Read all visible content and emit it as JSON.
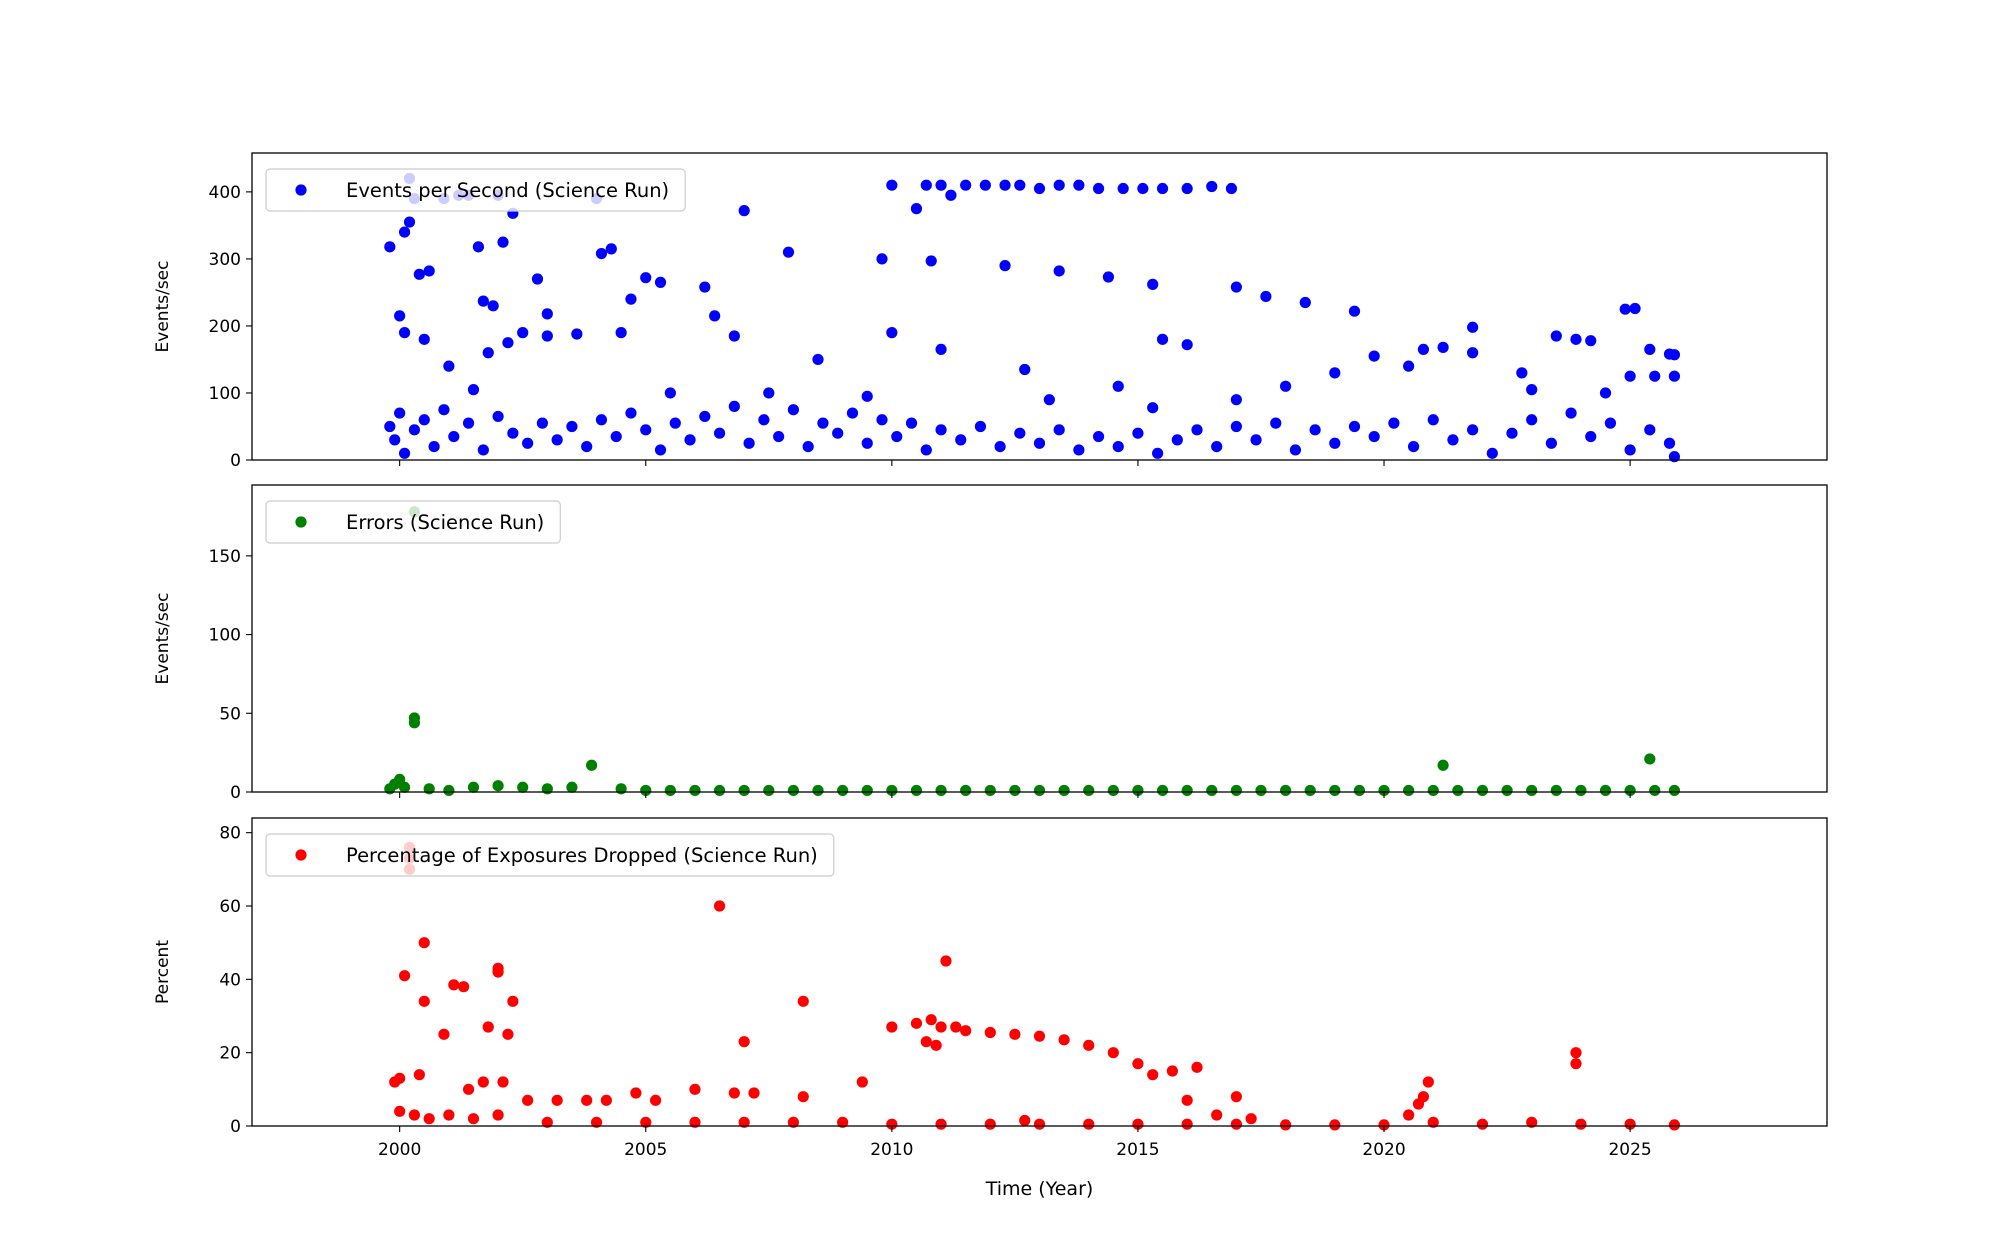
{
  "chart_data": [
    {
      "type": "scatter",
      "ylabel": "Events/sec",
      "xlim": [
        1997,
        2029
      ],
      "ylim": [
        0,
        458
      ],
      "xticks": [
        2000,
        2005,
        2010,
        2015,
        2020,
        2025
      ],
      "yticks": [
        0,
        100,
        200,
        300,
        400
      ],
      "legend": "upper left",
      "series": [
        {
          "name": "Events per Second (Science Run)",
          "color": "#0000ff",
          "x": [
            1999.8,
            1999.9,
            2000.0,
            2000.1,
            2000.3,
            2000.5,
            2000.7,
            2000.9,
            2001.1,
            2001.4,
            2001.7,
            2002.0,
            2002.3,
            2002.6,
            2002.9,
            2003.2,
            2003.5,
            2003.8,
            2004.1,
            2004.4,
            2004.7,
            2005.0,
            2005.3,
            2005.6,
            2005.9,
            2006.2,
            2006.5,
            2006.8,
            2007.1,
            2007.4,
            2007.7,
            2008.0,
            2008.3,
            2008.6,
            2008.9,
            2009.2,
            2009.5,
            2009.8,
            2010.1,
            2010.4,
            2010.7,
            2011.0,
            2011.4,
            2011.8,
            2012.2,
            2012.6,
            2013.0,
            2013.4,
            2013.8,
            2014.2,
            2014.6,
            2015.0,
            2015.4,
            2015.8,
            2016.2,
            2016.6,
            2017.0,
            2017.4,
            2017.8,
            2018.2,
            2018.6,
            2019.0,
            2019.4,
            2019.8,
            2020.2,
            2020.6,
            2021.0,
            2021.4,
            2021.8,
            2022.2,
            2022.6,
            2023.0,
            2023.4,
            2023.8,
            2024.2,
            2024.6,
            2025.0,
            2025.4,
            2025.8,
            2025.9,
            2000.2,
            2000.3,
            2000.9,
            2001.2,
            2001.4,
            2002.0,
            2004.0,
            1999.8,
            2000.1,
            2000.2,
            2000.4,
            2000.6,
            2001.6,
            2001.7,
            2001.9,
            2002.1,
            2002.3,
            2002.8,
            2003.0,
            2004.1,
            2004.3,
            2004.7,
            2005.0,
            2005.3,
            2006.2,
            2006.4,
            2007.0,
            2007.9,
            2009.8,
            2010.0,
            2010.5,
            2010.8,
            2010.7,
            2011.0,
            2011.2,
            2011.5,
            2011.9,
            2012.3,
            2012.6,
            2013.0,
            2013.4,
            2013.8,
            2014.2,
            2014.7,
            2015.1,
            2015.5,
            2016.0,
            2016.5,
            2016.9,
            2012.3,
            2013.4,
            2014.4,
            2015.3,
            2015.5,
            2016.0,
            2017.0,
            2017.6,
            2018.4,
            2019.4,
            2019.8,
            2017.0,
            2018.0,
            2019.0,
            2020.5,
            2020.8,
            2021.2,
            2021.8,
            2021.8,
            2022.8,
            2023.0,
            2023.5,
            2023.9,
            2024.2,
            2024.5,
            2024.9,
            2025.1,
            2025.0,
            2025.4,
            2025.5,
            2025.8,
            2025.9,
            2025.9,
            2001.0,
            2001.8,
            2002.5,
            2003.6,
            2004.5,
            2005.5,
            2006.8,
            2007.5,
            2008.5,
            2009.5,
            2010.0,
            2011.0,
            2012.7,
            2013.2,
            2014.6,
            2015.3,
            2000.0,
            2000.1,
            2000.5,
            2001.5,
            2002.2,
            2003.0
          ],
          "values": [
            50,
            30,
            70,
            10,
            45,
            60,
            20,
            75,
            35,
            55,
            15,
            65,
            40,
            25,
            55,
            30,
            50,
            20,
            60,
            35,
            70,
            45,
            15,
            55,
            30,
            65,
            40,
            80,
            25,
            60,
            35,
            75,
            20,
            55,
            40,
            70,
            25,
            60,
            35,
            55,
            15,
            45,
            30,
            50,
            20,
            40,
            25,
            45,
            15,
            35,
            20,
            40,
            10,
            30,
            45,
            20,
            50,
            30,
            55,
            15,
            45,
            25,
            50,
            35,
            55,
            20,
            60,
            30,
            45,
            10,
            40,
            60,
            25,
            70,
            35,
            55,
            15,
            45,
            25,
            5,
            420,
            390,
            390,
            395,
            395,
            395,
            390,
            318,
            340,
            355,
            277,
            282,
            318,
            237,
            230,
            325,
            368,
            270,
            218,
            308,
            315,
            240,
            272,
            265,
            258,
            215,
            372,
            310,
            300,
            410,
            375,
            297,
            410,
            410,
            395,
            410,
            410,
            410,
            410,
            405,
            410,
            410,
            405,
            405,
            405,
            405,
            405,
            408,
            405,
            290,
            282,
            273,
            262,
            180,
            172,
            258,
            244,
            235,
            222,
            155,
            90,
            110,
            130,
            140,
            165,
            168,
            198,
            160,
            130,
            105,
            185,
            180,
            178,
            100,
            225,
            226,
            125,
            165,
            125,
            158,
            157,
            125,
            140,
            160,
            190,
            188,
            190,
            100,
            185,
            100,
            150,
            95,
            190,
            165,
            135,
            90,
            110,
            78,
            215,
            190,
            180,
            105,
            175,
            185
          ]
        }
      ]
    },
    {
      "type": "scatter",
      "ylabel": "Events/sec",
      "xlim": [
        1997,
        2029
      ],
      "ylim": [
        0,
        195
      ],
      "xticks": [
        2000,
        2005,
        2010,
        2015,
        2020,
        2025
      ],
      "yticks": [
        0,
        50,
        100,
        150
      ],
      "legend": "upper left",
      "series": [
        {
          "name": "Errors (Science Run)",
          "color": "#008000",
          "x": [
            1999.8,
            1999.9,
            2000.0,
            2000.1,
            2000.3,
            2000.3,
            2000.3,
            2000.6,
            2001.0,
            2001.5,
            2002.0,
            2002.5,
            2003.0,
            2003.5,
            2003.9,
            2004.5,
            2005.0,
            2005.5,
            2006.0,
            2006.5,
            2007.0,
            2007.5,
            2008.0,
            2008.5,
            2009.0,
            2009.5,
            2010.0,
            2010.5,
            2011.0,
            2011.5,
            2012.0,
            2012.5,
            2013.0,
            2013.5,
            2014.0,
            2014.5,
            2015.0,
            2015.5,
            2016.0,
            2016.5,
            2017.0,
            2017.5,
            2018.0,
            2018.5,
            2019.0,
            2019.5,
            2020.0,
            2020.5,
            2021.0,
            2021.2,
            2021.5,
            2022.0,
            2022.5,
            2023.0,
            2023.5,
            2024.0,
            2024.5,
            2025.0,
            2025.4,
            2025.5,
            2025.9
          ],
          "values": [
            2,
            5,
            8,
            3,
            178,
            47,
            44,
            2,
            1,
            3,
            4,
            3,
            2,
            3,
            17,
            2,
            1,
            1,
            1,
            1,
            1,
            1,
            1,
            1,
            1,
            1,
            1,
            1,
            1,
            1,
            1,
            1,
            1,
            1,
            1,
            1,
            1,
            1,
            1,
            1,
            1,
            1,
            1,
            1,
            1,
            1,
            1,
            1,
            1,
            17,
            1,
            1,
            1,
            1,
            1,
            1,
            1,
            1,
            21,
            1,
            1
          ]
        }
      ]
    },
    {
      "type": "scatter",
      "ylabel": "Percent",
      "xlabel": "Time (Year)",
      "xlim": [
        1997,
        2029
      ],
      "ylim": [
        0,
        84
      ],
      "xticks": [
        2000,
        2005,
        2010,
        2015,
        2020,
        2025
      ],
      "yticks": [
        0,
        20,
        40,
        60,
        80
      ],
      "legend": "upper left",
      "series": [
        {
          "name": "Percentage of Exposures Dropped (Science Run)",
          "color": "#ff0000",
          "x": [
            2000.2,
            2000.2,
            2000.2,
            2000.1,
            2000.5,
            2000.5,
            2000.9,
            2001.1,
            2001.3,
            2001.8,
            2002.0,
            2002.0,
            2002.2,
            2002.3,
            1999.9,
            2000.0,
            2000.4,
            2001.4,
            2001.7,
            2002.1,
            2002.6,
            2003.2,
            2003.8,
            2004.2,
            2004.8,
            2005.2,
            2006.0,
            2006.5,
            2007.0,
            2006.8,
            2007.2,
            2008.2,
            2008.2,
            2009.4,
            2010.0,
            2010.5,
            2010.7,
            2010.8,
            2010.9,
            2011.1,
            2011.0,
            2011.3,
            2011.5,
            2012.0,
            2012.5,
            2013.0,
            2013.5,
            2014.0,
            2014.5,
            2015.0,
            2015.3,
            2015.7,
            2016.2,
            2016.0,
            2016.6,
            2017.0,
            2017.3,
            2020.5,
            2020.7,
            2020.8,
            2020.9,
            2023.9,
            2023.9,
            2000.0,
            2000.3,
            2000.6,
            2001.0,
            2001.5,
            2002.0,
            2003.0,
            2004.0,
            2005.0,
            2006.0,
            2007.0,
            2008.0,
            2009.0,
            2010.0,
            2011.0,
            2012.0,
            2012.7,
            2013.0,
            2014.0,
            2015.0,
            2016.0,
            2017.0,
            2018.0,
            2019.0,
            2020.0,
            2021.0,
            2022.0,
            2023.0,
            2024.0,
            2025.0,
            2025.9
          ],
          "values": [
            76,
            73,
            70,
            41,
            50,
            34,
            25,
            38.5,
            38,
            27,
            43,
            42,
            25,
            34,
            12,
            13,
            14,
            10,
            12,
            12,
            7,
            7,
            7,
            7,
            9,
            7,
            10,
            60,
            23,
            9,
            9,
            34,
            8,
            12,
            27,
            28,
            23,
            29,
            22,
            45,
            27,
            27,
            26,
            25.5,
            25,
            24.5,
            23.5,
            22,
            20,
            17,
            14,
            15,
            16,
            7,
            3,
            8,
            2,
            3,
            6,
            8,
            12,
            20,
            17,
            4,
            3,
            2,
            3,
            2,
            3,
            1,
            1,
            1,
            1,
            1,
            1,
            1,
            0.5,
            0.5,
            0.5,
            1.5,
            0.5,
            0.5,
            0.5,
            0.5,
            0.5,
            0.3,
            0.3,
            0.3,
            1,
            0.5,
            1,
            0.5,
            0.5,
            0.3
          ]
        }
      ]
    }
  ]
}
